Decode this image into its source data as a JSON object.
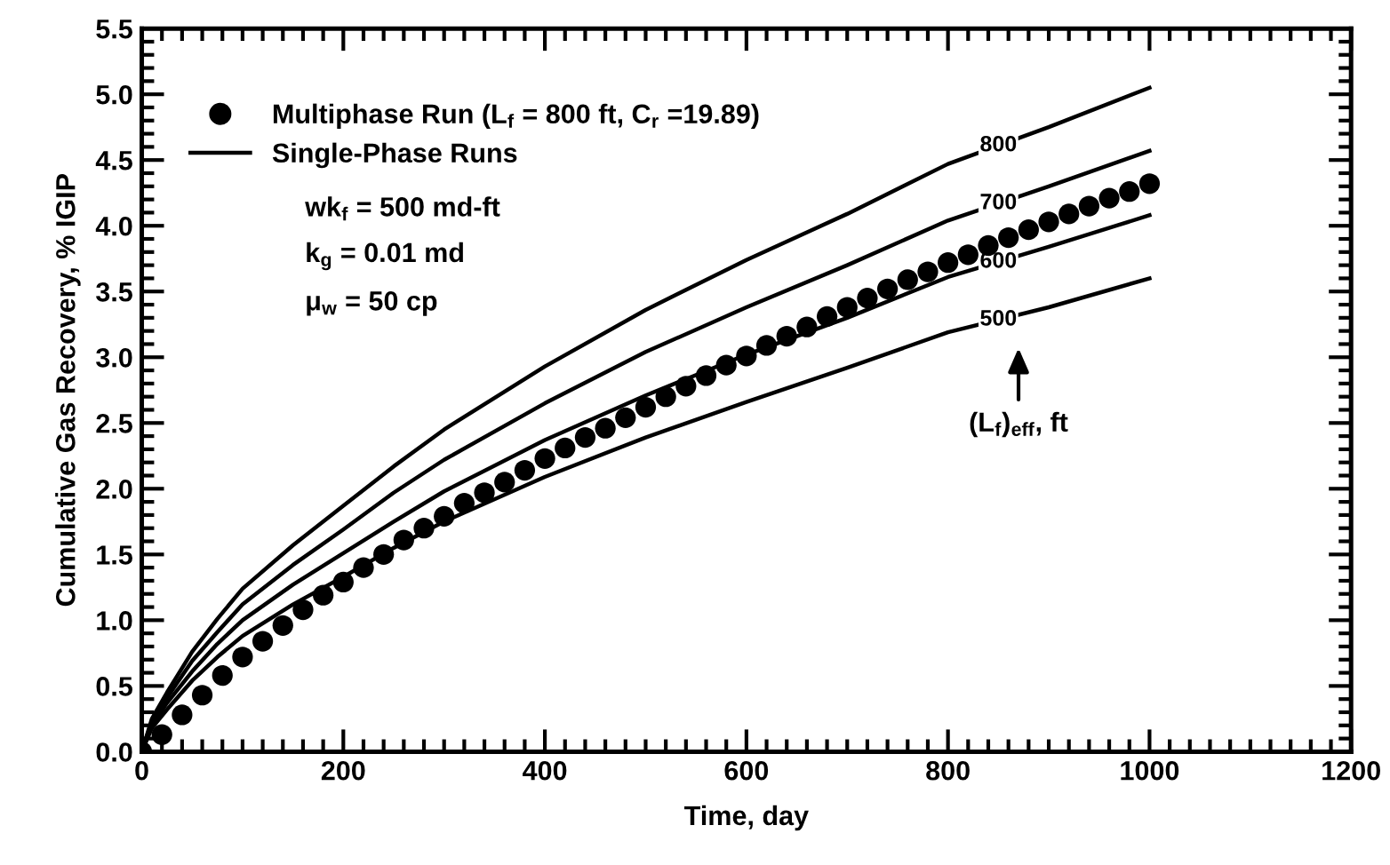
{
  "chart_data": {
    "type": "line",
    "xlabel": "Time, day",
    "ylabel": "Cumulative Gas Recovery, % IGIP",
    "xlim": [
      0,
      1200
    ],
    "xticks": [
      0,
      200,
      400,
      600,
      800,
      1000,
      1200
    ],
    "ylim": [
      0,
      5.5
    ],
    "yticks": [
      {
        "value": 0,
        "label": "0.0"
      },
      {
        "value": 0.5,
        "label": "0.5"
      },
      {
        "value": 1,
        "label": "1.0"
      },
      {
        "value": 1.5,
        "label": "1.5"
      },
      {
        "value": 2,
        "label": "2.0"
      },
      {
        "value": 2.5,
        "label": "2.5"
      },
      {
        "value": 3,
        "label": "3.0"
      },
      {
        "value": 3.5,
        "label": "3.5"
      },
      {
        "value": 4,
        "label": "4.0"
      },
      {
        "value": 4.5,
        "label": "4.5"
      },
      {
        "value": 5,
        "label": "5.0"
      },
      {
        "value": 5.5,
        "label": "5.5"
      }
    ],
    "grid": false,
    "legend": "top left",
    "series": [
      {
        "name": "Multiphase Run (L$_{f}$ = 800 ft, C$_{r}$ =19.89)",
        "type": "scatter",
        "marker": "circle",
        "color": "#000000",
        "x": [
          0,
          20,
          40,
          60,
          80,
          100,
          120,
          140,
          160,
          180,
          200,
          220,
          240,
          260,
          280,
          300,
          320,
          340,
          360,
          380,
          400,
          420,
          440,
          460,
          480,
          500,
          520,
          540,
          560,
          580,
          600,
          620,
          640,
          660,
          680,
          700,
          720,
          740,
          760,
          780,
          800,
          820,
          840,
          860,
          880,
          900,
          920,
          940,
          960,
          980,
          1000
        ],
        "values": [
          0,
          0.13,
          0.28,
          0.43,
          0.58,
          0.72,
          0.84,
          0.96,
          1.08,
          1.19,
          1.29,
          1.4,
          1.5,
          1.61,
          1.7,
          1.79,
          1.89,
          1.97,
          2.05,
          2.14,
          2.23,
          2.31,
          2.39,
          2.46,
          2.54,
          2.62,
          2.7,
          2.78,
          2.86,
          2.94,
          3.01,
          3.09,
          3.16,
          3.23,
          3.31,
          3.38,
          3.45,
          3.52,
          3.59,
          3.65,
          3.72,
          3.78,
          3.85,
          3.91,
          3.97,
          4.03,
          4.09,
          4.15,
          4.21,
          4.26,
          4.32
        ]
      },
      {
        "name": "800",
        "marker": "none",
        "line_style": "solid",
        "color": "#000000",
        "x": [
          0,
          10,
          25,
          50,
          75,
          100,
          150,
          200,
          250,
          300,
          400,
          500,
          600,
          700,
          800,
          900,
          1000
        ],
        "values": [
          0,
          0.25,
          0.45,
          0.76,
          1.01,
          1.24,
          1.57,
          1.87,
          2.17,
          2.45,
          2.93,
          3.36,
          3.74,
          4.09,
          4.47,
          4.75,
          5.05
        ]
      },
      {
        "name": "700",
        "marker": "none",
        "line_style": "solid",
        "color": "#000000",
        "x": [
          0,
          10,
          25,
          50,
          75,
          100,
          150,
          200,
          250,
          300,
          400,
          500,
          600,
          700,
          800,
          900,
          1000
        ],
        "values": [
          0,
          0.23,
          0.41,
          0.69,
          0.91,
          1.12,
          1.42,
          1.69,
          1.97,
          2.22,
          2.65,
          3.04,
          3.38,
          3.7,
          4.04,
          4.3,
          4.57
        ]
      },
      {
        "name": "600",
        "marker": "none",
        "line_style": "solid",
        "color": "#000000",
        "x": [
          0,
          10,
          25,
          50,
          75,
          100,
          150,
          200,
          250,
          300,
          400,
          500,
          600,
          700,
          800,
          900,
          1000
        ],
        "values": [
          0,
          0.2,
          0.37,
          0.61,
          0.82,
          1.0,
          1.27,
          1.51,
          1.75,
          1.98,
          2.37,
          2.71,
          3.02,
          3.3,
          3.61,
          3.84,
          4.08
        ]
      },
      {
        "name": "500",
        "marker": "none",
        "line_style": "solid",
        "color": "#000000",
        "x": [
          0,
          10,
          25,
          50,
          75,
          100,
          150,
          200,
          250,
          300,
          400,
          500,
          600,
          700,
          800,
          900,
          1000
        ],
        "values": [
          0,
          0.18,
          0.32,
          0.54,
          0.72,
          0.88,
          1.12,
          1.33,
          1.55,
          1.75,
          2.09,
          2.39,
          2.66,
          2.92,
          3.19,
          3.38,
          3.6
        ]
      }
    ],
    "annotations": [
      "Single-Phase Runs",
      "wk$_{f}$ = 500 md-ft",
      "k$_{g}$ = 0.01 md",
      "μ$_{w}$ = 50 cp",
      "(L$_{f}$)$_{eff}$, ft"
    ]
  }
}
